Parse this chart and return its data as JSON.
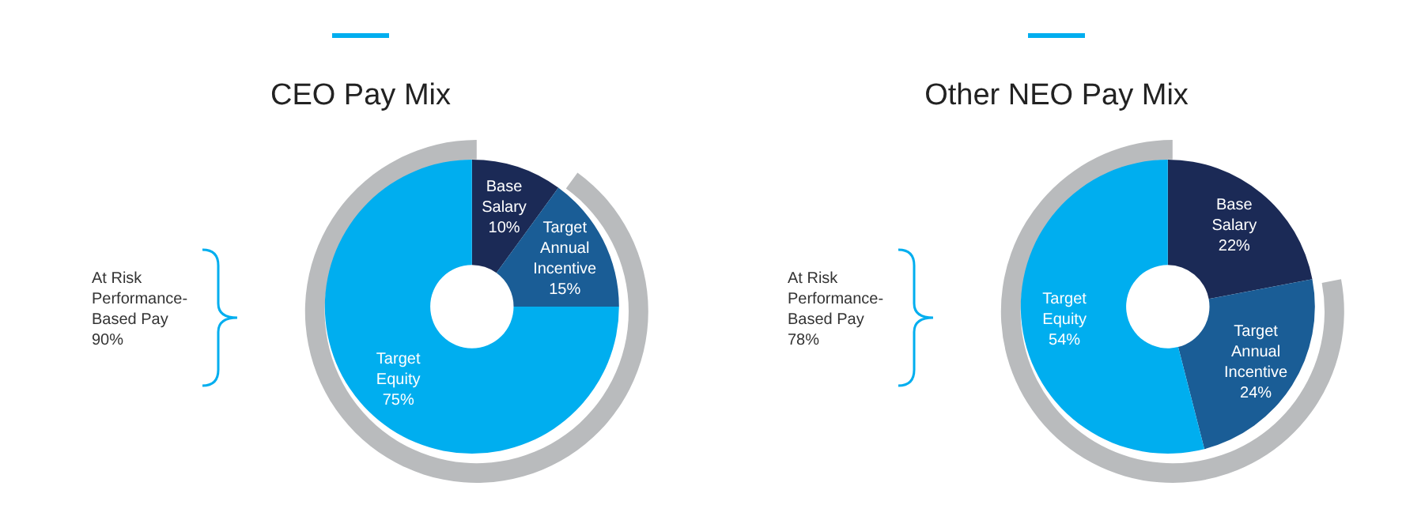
{
  "chart_data": [
    {
      "type": "donut",
      "title": "CEO Pay Mix",
      "categories": [
        "Base\nSalary",
        "Target\nAnnual\nIncentive",
        "Target\nEquity"
      ],
      "values": [
        10,
        15,
        75
      ],
      "value_labels": [
        "10%",
        "15%",
        "75%"
      ],
      "colors": [
        "#1b2a56",
        "#1a5d96",
        "#00aeef"
      ],
      "annotations": [
        "At Risk\nPerformance-\nBased Pay\n90%"
      ],
      "legend": false
    },
    {
      "type": "donut",
      "title": "Other NEO Pay Mix",
      "categories": [
        "Base\nSalary",
        "Target\nAnnual\nIncentive",
        "Target\nEquity"
      ],
      "values": [
        22,
        24,
        54
      ],
      "value_labels": [
        "22%",
        "24%",
        "54%"
      ],
      "colors": [
        "#1b2a56",
        "#1a5d96",
        "#00aeef"
      ],
      "annotations": [
        "At Risk\nPerformance-\nBased Pay\n78%"
      ],
      "legend": false
    }
  ]
}
